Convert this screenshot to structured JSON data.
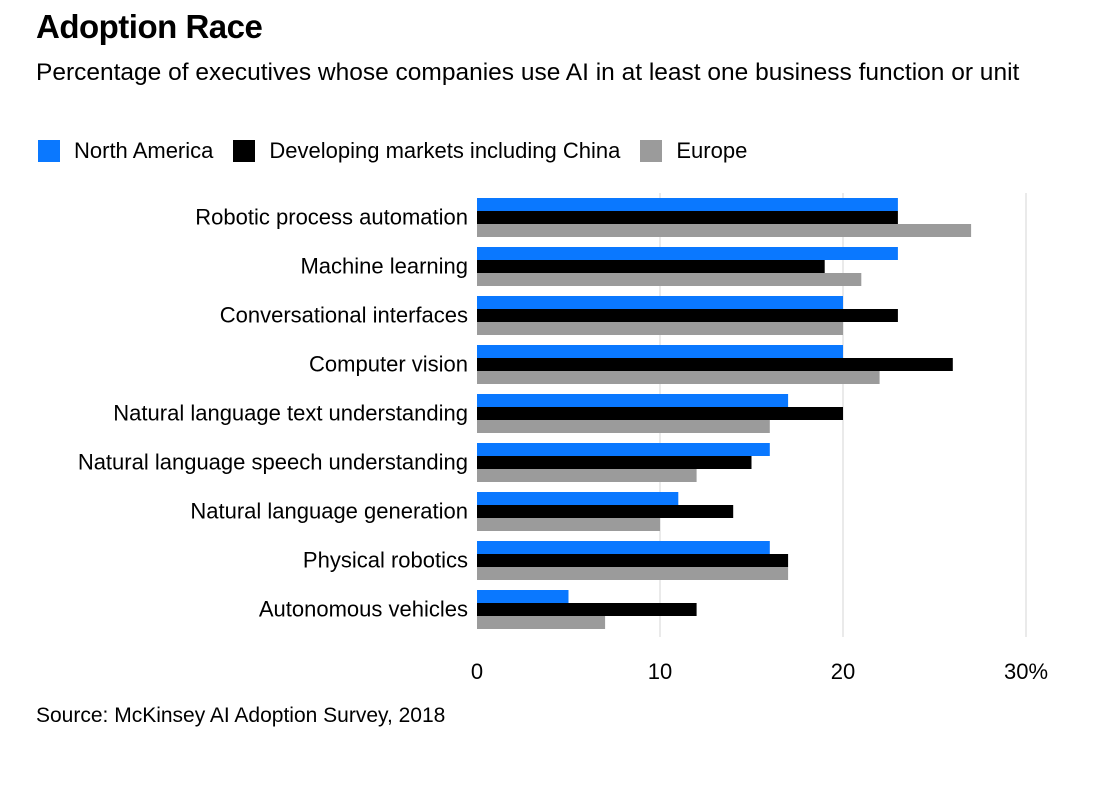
{
  "title": "Adoption Race",
  "subtitle": "Percentage of executives whose companies use AI in at least one business function or unit",
  "source": "Source: McKinsey AI Adoption Survey, 2018",
  "chart_data": {
    "type": "bar",
    "orientation": "horizontal",
    "categories": [
      "Robotic process automation",
      "Machine learning",
      "Conversational interfaces",
      "Computer vision",
      "Natural language text understanding",
      "Natural language speech understanding",
      "Natural language generation",
      "Physical robotics",
      "Autonomous vehicles"
    ],
    "series": [
      {
        "name": "North America",
        "color": "#0a78ff",
        "values": [
          23,
          23,
          20,
          20,
          17,
          16,
          11,
          16,
          5
        ]
      },
      {
        "name": "Developing markets including China",
        "color": "#000000",
        "values": [
          23,
          19,
          23,
          26,
          20,
          15,
          14,
          17,
          12
        ]
      },
      {
        "name": "Europe",
        "color": "#9b9b9b",
        "values": [
          27,
          21,
          20,
          22,
          16,
          12,
          10,
          17,
          7
        ]
      }
    ],
    "xlim": [
      0,
      30
    ],
    "xticks": [
      0,
      10,
      20,
      30
    ],
    "xtick_labels": [
      "0",
      "10",
      "20",
      "30%"
    ],
    "grid": true,
    "legend_position": "top-left"
  }
}
